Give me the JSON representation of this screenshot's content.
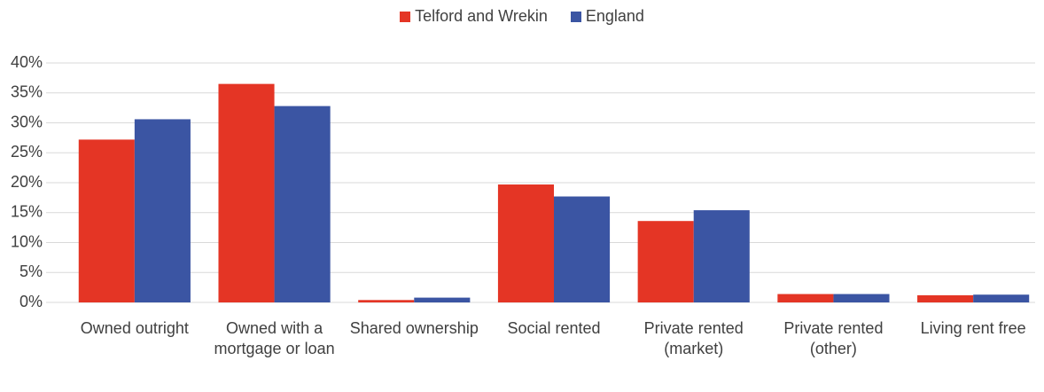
{
  "chart_data": {
    "type": "bar",
    "categories": [
      "Owned outright",
      "Owned with a mortgage or loan",
      "Shared ownership",
      "Social rented",
      "Private rented (market)",
      "Private rented (other)",
      "Living rent free"
    ],
    "series": [
      {
        "name": "Telford and Wrekin",
        "color": "#e43525",
        "values": [
          27.2,
          36.5,
          0.4,
          19.7,
          13.6,
          1.4,
          1.2
        ]
      },
      {
        "name": "England",
        "color": "#3b55a3",
        "values": [
          30.6,
          32.8,
          0.8,
          17.7,
          15.4,
          1.4,
          1.3
        ]
      }
    ],
    "ylim": [
      0,
      40
    ],
    "yticks": [
      {
        "value": 0,
        "label": "0%"
      },
      {
        "value": 5,
        "label": "5%"
      },
      {
        "value": 10,
        "label": "10%"
      },
      {
        "value": 15,
        "label": "15%"
      },
      {
        "value": 20,
        "label": "20%"
      },
      {
        "value": 25,
        "label": "25%"
      },
      {
        "value": 30,
        "label": "30%"
      },
      {
        "value": 35,
        "label": "35%"
      },
      {
        "value": 40,
        "label": "40%"
      }
    ],
    "grid": true,
    "legend": "top"
  }
}
